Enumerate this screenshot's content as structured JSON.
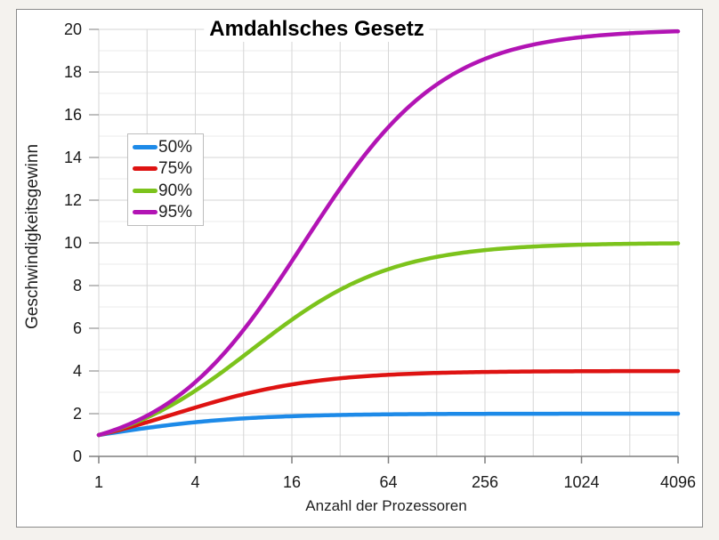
{
  "chart_data": {
    "type": "line",
    "title": "Amdahlsches Gesetz",
    "xlabel": "Anzahl der Prozessoren",
    "ylabel": "Geschwindigkeitsgewinn",
    "x_scale": "log2",
    "x_range": [
      1,
      4096
    ],
    "y_range": [
      0,
      20
    ],
    "x_ticks": [
      1,
      4,
      16,
      64,
      256,
      1024,
      4096
    ],
    "y_ticks": [
      0,
      2,
      4,
      6,
      8,
      10,
      12,
      14,
      16,
      18,
      20
    ],
    "grid": "major and minor gridlines on",
    "legend_position": "upper-left inside plot",
    "x_samples": [
      1,
      2,
      4,
      8,
      16,
      32,
      64,
      128,
      256,
      512,
      1024,
      2048,
      4096
    ],
    "series": [
      {
        "name": "50%",
        "parallel_fraction": 0.5,
        "color": "#1d8ae8",
        "values": [
          1,
          1.33,
          1.6,
          1.78,
          1.88,
          1.94,
          1.97,
          1.98,
          1.99,
          2.0,
          2.0,
          2.0,
          2.0
        ]
      },
      {
        "name": "75%",
        "parallel_fraction": 0.75,
        "color": "#de1312",
        "values": [
          1,
          1.6,
          2.29,
          2.91,
          3.37,
          3.66,
          3.82,
          3.91,
          3.95,
          3.98,
          3.99,
          3.99,
          4.0
        ]
      },
      {
        "name": "90%",
        "parallel_fraction": 0.9,
        "color": "#7cc31c",
        "values": [
          1,
          1.82,
          3.08,
          4.71,
          6.4,
          7.8,
          8.77,
          9.34,
          9.66,
          9.83,
          9.91,
          9.96,
          9.98
        ]
      },
      {
        "name": "95%",
        "parallel_fraction": 0.95,
        "color": "#b214b4",
        "values": [
          1,
          1.9,
          3.48,
          5.93,
          9.14,
          12.55,
          15.42,
          17.41,
          18.62,
          19.28,
          19.63,
          19.82,
          19.91
        ]
      }
    ],
    "colors": {
      "grid_major": "#d6d6d6",
      "grid_minor": "#ebebeb",
      "axis": "#7f7f7f",
      "tick_label": "#1a1a1a",
      "background": "#ffffff",
      "outer_background": "#f4f2ee",
      "frame_border": "#8a8a8a"
    }
  }
}
